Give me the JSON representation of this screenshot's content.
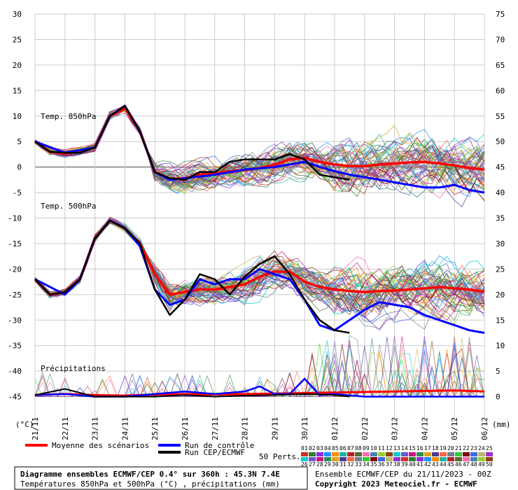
{
  "chart_data": {
    "type": "line",
    "left_axis": {
      "ticks": [
        30,
        25,
        20,
        15,
        10,
        5,
        0,
        -5,
        -10,
        -15,
        -20,
        -25,
        -30,
        -35,
        -40,
        -45
      ],
      "unit": "(°C)",
      "ylim": [
        -50,
        30
      ]
    },
    "right_axis": {
      "ticks": [
        75,
        70,
        65,
        60,
        55,
        50,
        45,
        40,
        35,
        30,
        25,
        20,
        15,
        10,
        5,
        0
      ],
      "unit": "(mm)",
      "ylim": [
        -5,
        75
      ]
    },
    "x_ticks": [
      "21/11",
      "22/11",
      "23/11",
      "24/11",
      "25/11",
      "26/11",
      "27/11",
      "28/11",
      "29/11",
      "30/11",
      "01/12",
      "02/12",
      "03/12",
      "04/12",
      "05/12",
      "06/12"
    ],
    "x_range_days": [
      0,
      15
    ],
    "panel_labels": {
      "t850": "Temp. 850hPa",
      "t500": "Temp. 500hPa",
      "precip": "Précipitations"
    },
    "grid": true,
    "series": [
      {
        "name": "Moyenne des scénarios",
        "color": "#ff0000",
        "t850": [
          [
            0,
            5
          ],
          [
            0.5,
            3
          ],
          [
            1,
            2.6
          ],
          [
            1.5,
            3
          ],
          [
            2,
            3.8
          ],
          [
            2.5,
            10
          ],
          [
            3,
            11.5
          ],
          [
            3.5,
            7
          ],
          [
            4,
            -1
          ],
          [
            4.5,
            -2.3
          ],
          [
            5,
            -2.2
          ],
          [
            5.5,
            -1.5
          ],
          [
            6,
            -1.2
          ],
          [
            6.5,
            -0.8
          ],
          [
            7,
            -0.6
          ],
          [
            7.5,
            -0.2
          ],
          [
            8,
            0.5
          ],
          [
            8.5,
            1.5
          ],
          [
            9,
            1.8
          ],
          [
            9.5,
            1
          ],
          [
            10,
            0.5
          ],
          [
            10.5,
            0.2
          ],
          [
            11,
            0.2
          ],
          [
            11.5,
            0.5
          ],
          [
            12,
            0.7
          ],
          [
            12.5,
            0.9
          ],
          [
            13,
            1
          ],
          [
            13.5,
            0.7
          ],
          [
            14,
            0.3
          ],
          [
            14.5,
            -0.2
          ],
          [
            15,
            -0.5
          ]
        ],
        "t500": [
          [
            0,
            -22
          ],
          [
            0.5,
            -25
          ],
          [
            1,
            -24.5
          ],
          [
            1.5,
            -22
          ],
          [
            2,
            -14
          ],
          [
            2.5,
            -10.5
          ],
          [
            3,
            -12
          ],
          [
            3.5,
            -15
          ],
          [
            4,
            -21
          ],
          [
            4.5,
            -25
          ],
          [
            5,
            -24.5
          ],
          [
            5.5,
            -24
          ],
          [
            6,
            -24
          ],
          [
            6.5,
            -23.5
          ],
          [
            7,
            -23
          ],
          [
            7.5,
            -21.5
          ],
          [
            8,
            -20.5
          ],
          [
            8.5,
            -20.5
          ],
          [
            9,
            -22.5
          ],
          [
            9.5,
            -23.5
          ],
          [
            10,
            -24
          ],
          [
            10.5,
            -24.3
          ],
          [
            11,
            -24.5
          ],
          [
            11.5,
            -24.3
          ],
          [
            12,
            -24.2
          ],
          [
            12.5,
            -24
          ],
          [
            13,
            -23.8
          ],
          [
            13.5,
            -23.5
          ],
          [
            14,
            -23.8
          ],
          [
            14.5,
            -24
          ],
          [
            15,
            -24.5
          ]
        ],
        "precip": [
          [
            0,
            0.3
          ],
          [
            1,
            0.5
          ],
          [
            2,
            0.3
          ],
          [
            3,
            0.2
          ],
          [
            4,
            0.4
          ],
          [
            5,
            0.5
          ],
          [
            6,
            0.4
          ],
          [
            7,
            0.5
          ],
          [
            8,
            0.6
          ],
          [
            9,
            0.7
          ],
          [
            10,
            0.8
          ],
          [
            11,
            0.9
          ],
          [
            12,
            1
          ],
          [
            13,
            1.1
          ],
          [
            14,
            1.2
          ],
          [
            15,
            1
          ]
        ]
      },
      {
        "name": "Run de contrôle",
        "color": "#0000ff",
        "t850": [
          [
            0,
            5
          ],
          [
            1,
            2.8
          ],
          [
            2,
            3.8
          ],
          [
            2.5,
            10
          ],
          [
            3,
            12
          ],
          [
            3.5,
            7
          ],
          [
            4,
            -1
          ],
          [
            4.5,
            -2.5
          ],
          [
            5,
            -2.2
          ],
          [
            6,
            -1.5
          ],
          [
            7,
            -0.5
          ],
          [
            8,
            0
          ],
          [
            9,
            1
          ],
          [
            9.5,
            0
          ],
          [
            10,
            -0.8
          ],
          [
            10.5,
            -1.5
          ],
          [
            11,
            -2
          ],
          [
            11.5,
            -2.5
          ],
          [
            12,
            -3
          ],
          [
            12.5,
            -3.5
          ],
          [
            13,
            -4
          ],
          [
            13.5,
            -4
          ],
          [
            14,
            -3.5
          ],
          [
            14.5,
            -4.5
          ],
          [
            15,
            -5
          ]
        ],
        "t500": [
          [
            0,
            -22
          ],
          [
            1,
            -25
          ],
          [
            1.5,
            -22
          ],
          [
            2,
            -14
          ],
          [
            2.5,
            -10.5
          ],
          [
            3,
            -12
          ],
          [
            3.5,
            -15.5
          ],
          [
            4,
            -24
          ],
          [
            4.5,
            -27
          ],
          [
            5,
            -26
          ],
          [
            5.5,
            -22
          ],
          [
            6,
            -23
          ],
          [
            6.5,
            -22
          ],
          [
            7,
            -22
          ],
          [
            7.5,
            -20
          ],
          [
            8,
            -21
          ],
          [
            8.5,
            -22
          ],
          [
            9,
            -26
          ],
          [
            9.5,
            -31
          ],
          [
            10,
            -32
          ],
          [
            10.5,
            -30
          ],
          [
            11,
            -28
          ],
          [
            11.5,
            -26.5
          ],
          [
            12,
            -27
          ],
          [
            12.5,
            -27.5
          ],
          [
            13,
            -29
          ],
          [
            13.5,
            -30
          ],
          [
            14,
            -31
          ],
          [
            14.5,
            -32
          ],
          [
            15,
            -32.5
          ]
        ],
        "precip": [
          [
            0,
            0.3
          ],
          [
            1,
            0.5
          ],
          [
            2,
            0
          ],
          [
            3,
            0
          ],
          [
            4,
            0.5
          ],
          [
            5,
            1
          ],
          [
            6,
            0.5
          ],
          [
            7,
            1
          ],
          [
            7.5,
            2
          ],
          [
            8,
            0.5
          ],
          [
            8.5,
            0.5
          ],
          [
            9,
            3.5
          ],
          [
            9.5,
            0.3
          ],
          [
            10,
            0.5
          ],
          [
            11,
            0
          ],
          [
            12,
            0
          ],
          [
            13,
            0
          ],
          [
            14,
            0
          ],
          [
            15,
            0
          ]
        ]
      },
      {
        "name": "Run CEP/ECMWF",
        "color": "#000000",
        "t850": [
          [
            0,
            5
          ],
          [
            0.5,
            3
          ],
          [
            1,
            2.8
          ],
          [
            1.5,
            2.8
          ],
          [
            2,
            3.8
          ],
          [
            2.5,
            10
          ],
          [
            3,
            12
          ],
          [
            3.5,
            7
          ],
          [
            4,
            -1
          ],
          [
            4.5,
            -2.2
          ],
          [
            5,
            -2.5
          ],
          [
            5.5,
            -1
          ],
          [
            6,
            -1
          ],
          [
            6.5,
            1
          ],
          [
            7,
            1.5
          ],
          [
            7.5,
            1.5
          ],
          [
            8,
            1.5
          ],
          [
            8.5,
            2.5
          ],
          [
            9,
            1.5
          ],
          [
            9.5,
            -1.5
          ],
          [
            10,
            -2
          ],
          [
            10.5,
            -2.5
          ]
        ],
        "t500": [
          [
            0,
            -22
          ],
          [
            0.5,
            -25
          ],
          [
            1,
            -24.5
          ],
          [
            1.5,
            -22
          ],
          [
            2,
            -14
          ],
          [
            2.5,
            -10.5
          ],
          [
            3,
            -12
          ],
          [
            3.5,
            -15
          ],
          [
            4,
            -24
          ],
          [
            4.5,
            -29
          ],
          [
            5,
            -26
          ],
          [
            5.5,
            -21
          ],
          [
            6,
            -22
          ],
          [
            6.5,
            -25
          ],
          [
            7,
            -21.5
          ],
          [
            7.5,
            -19
          ],
          [
            8,
            -17.5
          ],
          [
            8.5,
            -21
          ],
          [
            9,
            -26
          ],
          [
            9.5,
            -30
          ],
          [
            10,
            -32
          ],
          [
            10.5,
            -32.5
          ]
        ],
        "precip": [
          [
            0,
            0.3
          ],
          [
            1,
            1.5
          ],
          [
            2,
            0
          ],
          [
            3,
            0
          ],
          [
            4,
            0
          ],
          [
            5,
            0.3
          ],
          [
            6,
            0
          ],
          [
            7,
            0.2
          ],
          [
            8,
            0.3
          ],
          [
            9,
            0.5
          ],
          [
            10,
            0.3
          ],
          [
            10.5,
            0
          ]
        ]
      }
    ]
  },
  "legend": {
    "mean": "Moyenne des scénarios",
    "control": "Run de contrôle",
    "oper": "Run CEP/ECMWF",
    "perts_label": "50 Perts.",
    "perts_row1": [
      "01",
      "02",
      "03",
      "04",
      "05",
      "06",
      "07",
      "08",
      "09",
      "10",
      "11",
      "12",
      "13",
      "14",
      "15",
      "16",
      "17",
      "18",
      "19",
      "20",
      "21",
      "22",
      "23",
      "24",
      "25"
    ],
    "perts_row2": [
      "26",
      "27",
      "28",
      "29",
      "30",
      "31",
      "32",
      "33",
      "34",
      "35",
      "36",
      "37",
      "38",
      "39",
      "40",
      "41",
      "42",
      "43",
      "44",
      "45",
      "46",
      "47",
      "48",
      "49",
      "50"
    ]
  },
  "info": {
    "title": "Diagramme ensembles ECMWF/CEP 0.4° sur 360h : 45.3N 7.4E",
    "subtitle": "Températures 850hPa et 500hPa (°C) , précipitations (mm)",
    "run": "Ensemble ECMWF/CEP du 21/11/2023 - 00Z",
    "copyright": "Copyright 2023 Meteociel.fr - ECMWF"
  },
  "colors": {
    "grid": "#cccccc",
    "mean": "#ff0000",
    "control": "#0000ff",
    "oper": "#000000",
    "perts": [
      "#d62d2d",
      "#2a7f2a",
      "#8a2be2",
      "#1e90ff",
      "#ff8c00",
      "#20b2aa",
      "#b22222",
      "#556b2f",
      "#ff69b4",
      "#4682b4",
      "#9acd32",
      "#8b4513",
      "#00ced1",
      "#6a5acd",
      "#c71585",
      "#2e8b57",
      "#daa520",
      "#483d8b",
      "#ff6347",
      "#708090",
      "#32cd32",
      "#800000",
      "#4169e1",
      "#bdb76b",
      "#9932cc"
    ]
  }
}
